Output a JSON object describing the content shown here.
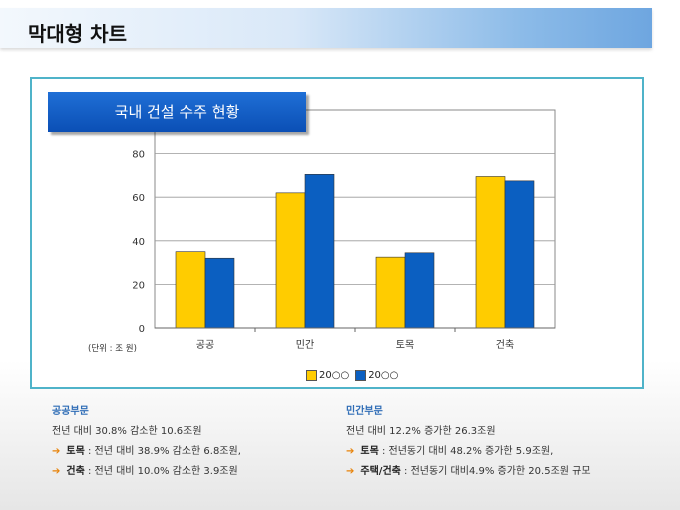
{
  "header": {
    "title": "막대형 차트"
  },
  "chart_data": {
    "type": "bar",
    "title": "국내 건설 수주 현황",
    "categories": [
      "공공",
      "민간",
      "토목",
      "건축"
    ],
    "series": [
      {
        "name": "20○○",
        "color": "#ffcc00",
        "values": [
          35,
          62,
          32.5,
          69.5
        ]
      },
      {
        "name": "20○○",
        "color": "#0b5fc1",
        "values": [
          32,
          70.5,
          34.5,
          67.5
        ]
      }
    ],
    "ylim": [
      0,
      100
    ],
    "yticks": [
      0,
      20,
      40,
      60,
      80
    ],
    "unit_label": "(단위 : 조 원)",
    "legend_position": "bottom"
  },
  "panels": {
    "public": {
      "title": "공공부문",
      "summary": "전년 대비 30.8% 감소한 10.6조원",
      "items": [
        {
          "key": "토목",
          "text": " : 전년 대비 38.9% 감소한 6.8조원,"
        },
        {
          "key": "건축",
          "text": " : 전년 대비 10.0% 감소한 3.9조원"
        }
      ]
    },
    "private": {
      "title": "민간부문",
      "summary": "전년 대비 12.2% 증가한 26.3조원",
      "items": [
        {
          "key": "토목",
          "text": " : 전년동기 대비 48.2% 증가한 5.9조원,"
        },
        {
          "key": "주택/건축",
          "text": " : 전년동기 대비4.9% 증가한 20.5조원 규모"
        }
      ]
    }
  }
}
